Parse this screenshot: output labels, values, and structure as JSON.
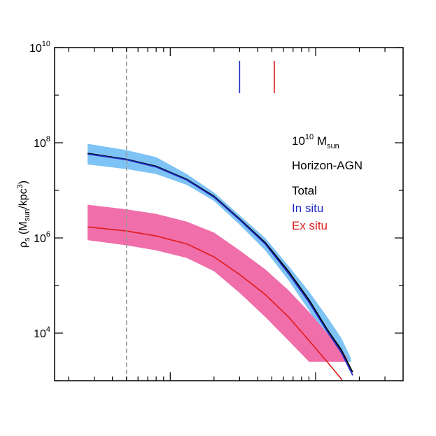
{
  "chart_data": {
    "type": "line",
    "ylabel": "ρ",
    "ylabel_sub": "s",
    "ylabel_units": {
      "open": " (M",
      "sub": "sun",
      "mid": "/kpc",
      "sup": "3",
      "close": ")"
    },
    "xlabel": "",
    "x_scale": "log",
    "y_scale": "log",
    "xlim": [
      0.16,
      40
    ],
    "ylim": [
      1000,
      10000000000
    ],
    "y_ticks": [
      {
        "value": 10000,
        "base": "10",
        "exp": "4"
      },
      {
        "value": 1000000,
        "base": "10",
        "exp": "6"
      },
      {
        "value": 100000000,
        "base": "10",
        "exp": "8"
      },
      {
        "value": 10000000000,
        "base": "10",
        "exp": "10"
      }
    ],
    "x_ticks": [
      0.2,
      0.3,
      0.4,
      0.5,
      0.6,
      0.7,
      0.8,
      0.9,
      1,
      2,
      3,
      4,
      5,
      6,
      7,
      8,
      9,
      10,
      20,
      30
    ],
    "x_major_ticks": [
      1,
      10
    ],
    "vline": {
      "x": 0.5,
      "color": "#999999"
    },
    "markers": [
      {
        "x": 3.0,
        "color": "#1f2bc4"
      },
      {
        "x": 5.2,
        "color": "#e01b1b"
      }
    ],
    "annotations": {
      "mass": {
        "base": "10",
        "exp": "10",
        "unit": " M",
        "sub": "sun"
      },
      "sim": "Horizon-AGN"
    },
    "legend": [
      {
        "label": "Total",
        "color": "#000000"
      },
      {
        "label": "In situ",
        "color": "#1f2bc4"
      },
      {
        "label": "Ex situ",
        "color": "#e01b1b"
      }
    ],
    "series": [
      {
        "key": "total",
        "color": "#000000",
        "x": [
          0.27,
          0.5,
          0.8,
          1.3,
          2.0,
          3.0,
          4.5,
          6.5,
          9,
          12,
          15,
          18
        ],
        "values": [
          60000000,
          45000000,
          32000000,
          17000000,
          7500000,
          2500000,
          800000,
          200000,
          50000,
          12000,
          4500,
          1500
        ]
      },
      {
        "key": "insitu",
        "color": "#1f2bc4",
        "x": [
          0.27,
          0.5,
          0.8,
          1.3,
          2.0,
          3.0,
          4.5,
          6.5,
          9,
          12,
          15,
          18
        ],
        "values": [
          58000000,
          44000000,
          31000000,
          16500000,
          7200000,
          2400000,
          750000,
          180000,
          45000,
          11000,
          4000,
          1300
        ]
      },
      {
        "key": "exsitu",
        "color": "#e01b1b",
        "x": [
          0.27,
          0.5,
          0.8,
          1.3,
          2.0,
          3.0,
          4.5,
          6.5,
          9,
          12,
          15,
          17.5
        ],
        "values": [
          1700000,
          1400000,
          1100000,
          750000,
          400000,
          170000,
          65000,
          22000,
          7000,
          2500,
          1100,
          400
        ]
      }
    ],
    "bands": [
      {
        "key": "insitu-band",
        "color": "#7ec3f5",
        "x": [
          0.27,
          0.5,
          0.8,
          1.3,
          2.0,
          3.0,
          4.5,
          6.5,
          9,
          12,
          15,
          17.5
        ],
        "upper": [
          95000000,
          70000000,
          50000000,
          22000000,
          9000000,
          3000000,
          1000000,
          260000,
          75000,
          22000,
          8000,
          3000
        ],
        "lower": [
          35000000,
          28000000,
          22000000,
          13000000,
          6000000,
          1900000,
          550000,
          130000,
          30000,
          7000,
          2500,
          2500
        ]
      },
      {
        "key": "exsitu-band",
        "color": "#f06ea9",
        "x": [
          0.27,
          0.5,
          0.8,
          1.3,
          2.0,
          3.0,
          4.5,
          6.5,
          9,
          12,
          15,
          16.5
        ],
        "upper": [
          5000000,
          4000000,
          3200000,
          2200000,
          1300000,
          550000,
          220000,
          80000,
          28000,
          10000,
          4500,
          3000
        ],
        "lower": [
          900000,
          700000,
          550000,
          380000,
          200000,
          70000,
          22000,
          7000,
          2500,
          2500,
          2500,
          2500
        ]
      }
    ]
  }
}
